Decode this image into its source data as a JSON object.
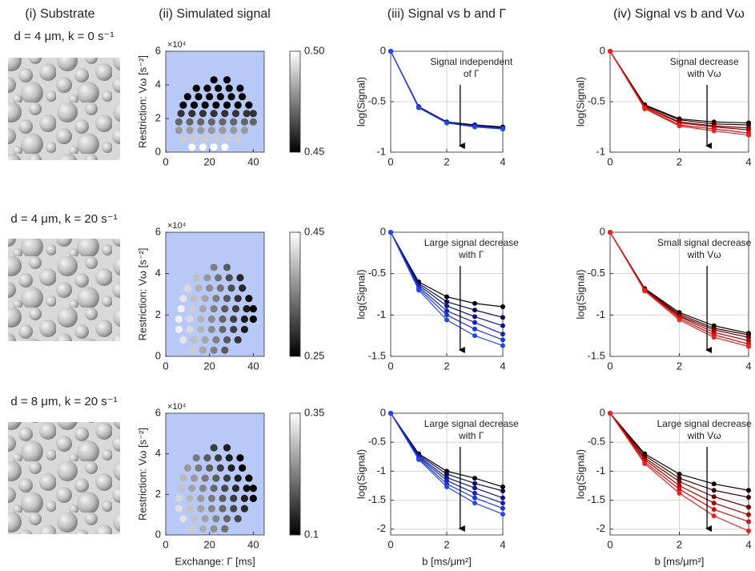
{
  "column_titles": [
    "(i) Substrate",
    "(ii) Simulated signal",
    "(iii) Signal vs b and Γ",
    "(iv) Signal vs b and Vω"
  ],
  "row_labels": [
    "d = 4 μm, k = 0 s⁻¹",
    "d = 4 μm, k = 20 s⁻¹",
    "d = 8 μm, k = 20 s⁻¹"
  ],
  "chart_data": [
    {
      "type": "scatter",
      "ylabel": "Restriction: Vω [s⁻²]",
      "y_multiplier": "×10⁴",
      "background": "#b8c9f8",
      "colormap": "gray",
      "xlim": [
        0,
        45
      ],
      "xticks": [
        0,
        20,
        40
      ],
      "ylim": [
        0,
        6
      ],
      "yticks": [
        0,
        2,
        4,
        6
      ],
      "clim": [
        0.45,
        0.5
      ],
      "cticks": [
        0.45,
        {
          "value": 0.5,
          "label": "0.50"
        }
      ],
      "x": [
        12,
        17,
        22,
        27,
        8,
        13,
        18,
        23,
        28,
        33,
        6,
        11,
        16,
        21,
        26,
        31,
        36,
        6,
        11,
        16,
        21,
        26,
        31,
        36,
        40,
        7,
        12,
        17,
        22,
        27,
        32,
        37,
        40,
        8,
        13,
        18,
        23,
        28,
        33,
        38,
        10,
        15,
        20,
        25,
        30,
        35,
        14,
        19,
        24,
        29,
        34,
        22,
        28
      ],
      "y": [
        0.3,
        0.3,
        0.3,
        0.3,
        0.8,
        0.8,
        0.8,
        0.8,
        0.8,
        0.8,
        1.3,
        1.3,
        1.3,
        1.3,
        1.3,
        1.3,
        1.3,
        1.8,
        1.8,
        1.8,
        1.8,
        1.8,
        1.8,
        1.8,
        1.8,
        2.3,
        2.3,
        2.3,
        2.3,
        2.3,
        2.3,
        2.3,
        2.3,
        2.8,
        2.8,
        2.8,
        2.8,
        2.8,
        2.8,
        2.8,
        3.3,
        3.3,
        3.3,
        3.3,
        3.3,
        3.3,
        3.8,
        3.8,
        3.8,
        3.8,
        3.8,
        4.3,
        4.3
      ],
      "values": [
        0.5,
        0.5,
        0.5,
        0.5,
        0.49,
        0.49,
        0.49,
        0.49,
        0.49,
        0.49,
        0.48,
        0.48,
        0.48,
        0.48,
        0.48,
        0.48,
        0.48,
        0.47,
        0.47,
        0.47,
        0.47,
        0.47,
        0.47,
        0.47,
        0.47,
        0.46,
        0.46,
        0.46,
        0.46,
        0.46,
        0.46,
        0.46,
        0.46,
        0.45,
        0.45,
        0.45,
        0.45,
        0.45,
        0.45,
        0.45,
        0.45,
        0.45,
        0.45,
        0.45,
        0.45,
        0.45,
        0.45,
        0.45,
        0.45,
        0.45,
        0.45,
        0.45,
        0.45
      ]
    },
    {
      "type": "line",
      "ylabel": "log(Signal)",
      "annotation": [
        "Signal independent",
        "of Γ"
      ],
      "grid": true,
      "x": [
        0,
        1,
        2,
        3,
        4
      ],
      "xlim": [
        0,
        4
      ],
      "xticks": [
        0,
        2,
        4
      ],
      "ylim": [
        -1,
        0
      ],
      "yticks": [
        -1,
        -0.5,
        0
      ],
      "series": [
        {
          "color": "#000000",
          "values": [
            0,
            -0.55,
            -0.7,
            -0.73,
            -0.75
          ]
        },
        {
          "color": "#0d0d55",
          "values": [
            0,
            -0.55,
            -0.7,
            -0.74,
            -0.76
          ]
        },
        {
          "color": "#141487",
          "values": [
            0,
            -0.56,
            -0.71,
            -0.74,
            -0.76
          ]
        },
        {
          "color": "#1a22b0",
          "values": [
            0,
            -0.56,
            -0.71,
            -0.74,
            -0.77
          ]
        },
        {
          "color": "#1f36d4",
          "values": [
            0,
            -0.56,
            -0.71,
            -0.75,
            -0.77
          ]
        },
        {
          "color": "#2448f0",
          "values": [
            0,
            -0.56,
            -0.71,
            -0.75,
            -0.77
          ]
        }
      ]
    },
    {
      "type": "line",
      "ylabel": "log(Signal)",
      "annotation": [
        "Signal decrease",
        "with Vω"
      ],
      "grid": true,
      "x": [
        0,
        1,
        2,
        3,
        4
      ],
      "xlim": [
        0,
        4
      ],
      "xticks": [
        0,
        2,
        4
      ],
      "ylim": [
        -1,
        0
      ],
      "yticks": [
        -1,
        -0.5,
        0
      ],
      "series": [
        {
          "color": "#000000",
          "values": [
            0,
            -0.53,
            -0.67,
            -0.7,
            -0.71
          ]
        },
        {
          "color": "#3a0000",
          "values": [
            0,
            -0.54,
            -0.68,
            -0.72,
            -0.73
          ]
        },
        {
          "color": "#6e0000",
          "values": [
            0,
            -0.55,
            -0.7,
            -0.74,
            -0.76
          ]
        },
        {
          "color": "#a00606",
          "values": [
            0,
            -0.55,
            -0.71,
            -0.75,
            -0.78
          ]
        },
        {
          "color": "#d01212",
          "values": [
            0,
            -0.56,
            -0.73,
            -0.77,
            -0.81
          ]
        },
        {
          "color": "#f42020",
          "values": [
            0,
            -0.57,
            -0.74,
            -0.79,
            -0.83
          ]
        }
      ]
    },
    {
      "type": "scatter",
      "ylabel": "Restriction: Vω [s⁻²]",
      "y_multiplier": "×10⁴",
      "background": "#b8c9f8",
      "colormap": "gray",
      "xlim": [
        0,
        45
      ],
      "xticks": [
        0,
        20,
        40
      ],
      "ylim": [
        0,
        6
      ],
      "yticks": [
        0,
        2,
        4,
        6
      ],
      "clim": [
        0.25,
        0.45
      ],
      "cticks": [
        0.25,
        0.45
      ],
      "x": [
        12,
        17,
        22,
        27,
        8,
        13,
        18,
        23,
        28,
        33,
        6,
        11,
        16,
        21,
        26,
        31,
        36,
        6,
        11,
        16,
        21,
        26,
        31,
        36,
        40,
        7,
        12,
        17,
        22,
        27,
        32,
        37,
        40,
        8,
        13,
        18,
        23,
        28,
        33,
        38,
        10,
        15,
        20,
        25,
        30,
        35,
        14,
        19,
        24,
        29,
        34,
        22,
        28
      ],
      "y": [
        0.3,
        0.3,
        0.3,
        0.3,
        0.8,
        0.8,
        0.8,
        0.8,
        0.8,
        0.8,
        1.3,
        1.3,
        1.3,
        1.3,
        1.3,
        1.3,
        1.3,
        1.8,
        1.8,
        1.8,
        1.8,
        1.8,
        1.8,
        1.8,
        1.8,
        2.3,
        2.3,
        2.3,
        2.3,
        2.3,
        2.3,
        2.3,
        2.3,
        2.8,
        2.8,
        2.8,
        2.8,
        2.8,
        2.8,
        2.8,
        3.3,
        3.3,
        3.3,
        3.3,
        3.3,
        3.3,
        3.8,
        3.8,
        3.8,
        3.8,
        3.8,
        4.3,
        4.3
      ],
      "values": [
        0.41,
        0.38,
        0.35,
        0.32,
        0.43,
        0.4,
        0.38,
        0.35,
        0.32,
        0.29,
        0.44,
        0.42,
        0.39,
        0.36,
        0.33,
        0.3,
        0.27,
        0.44,
        0.42,
        0.39,
        0.36,
        0.33,
        0.3,
        0.27,
        0.25,
        0.44,
        0.41,
        0.38,
        0.35,
        0.32,
        0.3,
        0.27,
        0.25,
        0.43,
        0.4,
        0.38,
        0.35,
        0.32,
        0.29,
        0.26,
        0.42,
        0.39,
        0.36,
        0.34,
        0.31,
        0.28,
        0.4,
        0.37,
        0.34,
        0.31,
        0.28,
        0.35,
        0.32
      ]
    },
    {
      "type": "line",
      "ylabel": "log(Signal)",
      "annotation": [
        "Large signal decrease",
        "with Γ"
      ],
      "grid": true,
      "x": [
        0,
        1,
        2,
        3,
        4
      ],
      "xlim": [
        0,
        4
      ],
      "xticks": [
        0,
        2,
        4
      ],
      "ylim": [
        -1.5,
        0
      ],
      "yticks": [
        -1.5,
        -1,
        -0.5,
        0
      ],
      "series": [
        {
          "color": "#000000",
          "values": [
            0,
            -0.6,
            -0.78,
            -0.86,
            -0.9
          ]
        },
        {
          "color": "#0d0d55",
          "values": [
            0,
            -0.62,
            -0.84,
            -0.94,
            -1.03
          ]
        },
        {
          "color": "#141487",
          "values": [
            0,
            -0.64,
            -0.89,
            -1.02,
            -1.13
          ]
        },
        {
          "color": "#1a22b0",
          "values": [
            0,
            -0.66,
            -0.95,
            -1.09,
            -1.23
          ]
        },
        {
          "color": "#1f36d4",
          "values": [
            0,
            -0.68,
            -1.0,
            -1.17,
            -1.3
          ]
        },
        {
          "color": "#2448f0",
          "values": [
            0,
            -0.7,
            -1.06,
            -1.25,
            -1.37
          ]
        }
      ]
    },
    {
      "type": "line",
      "ylabel": "log(Signal)",
      "annotation": [
        "Small signal decrease",
        "with Vω"
      ],
      "grid": true,
      "x": [
        0,
        1,
        2,
        3,
        4
      ],
      "xlim": [
        0,
        4
      ],
      "xticks": [
        0,
        2,
        4
      ],
      "ylim": [
        -1.5,
        0
      ],
      "yticks": [
        -1.5,
        -1,
        -0.5,
        0
      ],
      "series": [
        {
          "color": "#000000",
          "values": [
            0,
            -0.68,
            -0.97,
            -1.13,
            -1.22
          ]
        },
        {
          "color": "#3a0000",
          "values": [
            0,
            -0.69,
            -0.99,
            -1.16,
            -1.24
          ]
        },
        {
          "color": "#6e0000",
          "values": [
            0,
            -0.69,
            -1.01,
            -1.18,
            -1.27
          ]
        },
        {
          "color": "#a00606",
          "values": [
            0,
            -0.7,
            -1.02,
            -1.21,
            -1.31
          ]
        },
        {
          "color": "#d01212",
          "values": [
            0,
            -0.7,
            -1.04,
            -1.24,
            -1.35
          ]
        },
        {
          "color": "#f42020",
          "values": [
            0,
            -0.71,
            -1.06,
            -1.27,
            -1.38
          ]
        }
      ]
    },
    {
      "type": "scatter",
      "ylabel": "Restriction: Vω [s⁻²]",
      "xlabel": "Exchange: Γ [ms]",
      "y_multiplier": "×10⁴",
      "background": "#b8c9f8",
      "colormap": "gray",
      "xlim": [
        0,
        45
      ],
      "xticks": [
        0,
        20,
        40
      ],
      "ylim": [
        0,
        6
      ],
      "yticks": [
        0,
        2,
        4,
        6
      ],
      "clim": [
        0.1,
        0.35
      ],
      "cticks": [
        0.1,
        0.35
      ],
      "x": [
        12,
        17,
        22,
        27,
        8,
        13,
        18,
        23,
        28,
        33,
        6,
        11,
        16,
        21,
        26,
        31,
        36,
        6,
        11,
        16,
        21,
        26,
        31,
        36,
        40,
        7,
        12,
        17,
        22,
        27,
        32,
        37,
        40,
        8,
        13,
        18,
        23,
        28,
        33,
        38,
        10,
        15,
        20,
        25,
        30,
        35,
        14,
        19,
        24,
        29,
        34,
        22,
        28
      ],
      "y": [
        0.3,
        0.3,
        0.3,
        0.3,
        0.8,
        0.8,
        0.8,
        0.8,
        0.8,
        0.8,
        1.3,
        1.3,
        1.3,
        1.3,
        1.3,
        1.3,
        1.3,
        1.8,
        1.8,
        1.8,
        1.8,
        1.8,
        1.8,
        1.8,
        1.8,
        2.3,
        2.3,
        2.3,
        2.3,
        2.3,
        2.3,
        2.3,
        2.3,
        2.8,
        2.8,
        2.8,
        2.8,
        2.8,
        2.8,
        2.8,
        3.3,
        3.3,
        3.3,
        3.3,
        3.3,
        3.3,
        3.8,
        3.8,
        3.8,
        3.8,
        3.8,
        4.3,
        4.3
      ],
      "values": [
        0.3,
        0.27,
        0.24,
        0.21,
        0.32,
        0.29,
        0.26,
        0.23,
        0.2,
        0.17,
        0.32,
        0.29,
        0.26,
        0.23,
        0.2,
        0.17,
        0.14,
        0.31,
        0.28,
        0.25,
        0.22,
        0.19,
        0.16,
        0.13,
        0.1,
        0.29,
        0.26,
        0.23,
        0.2,
        0.17,
        0.14,
        0.11,
        0.1,
        0.28,
        0.25,
        0.22,
        0.19,
        0.16,
        0.13,
        0.1,
        0.25,
        0.22,
        0.19,
        0.16,
        0.13,
        0.1,
        0.22,
        0.19,
        0.16,
        0.13,
        0.1,
        0.16,
        0.13
      ]
    },
    {
      "type": "line",
      "ylabel": "log(Signal)",
      "xlabel": "b [ms/μm²]",
      "annotation": [
        "Large signal decrease",
        "with Γ"
      ],
      "grid": true,
      "x": [
        0,
        1,
        2,
        3,
        4
      ],
      "xlim": [
        0,
        4
      ],
      "xticks": [
        0,
        2,
        4
      ],
      "ylim": [
        -2.1,
        0
      ],
      "yticks": [
        -2,
        -1.5,
        -1,
        -0.5,
        0
      ],
      "series": [
        {
          "color": "#000000",
          "values": [
            0,
            -0.7,
            -1.0,
            -1.12,
            -1.27
          ]
        },
        {
          "color": "#0d0d55",
          "values": [
            0,
            -0.72,
            -1.05,
            -1.21,
            -1.34
          ]
        },
        {
          "color": "#141487",
          "values": [
            0,
            -0.74,
            -1.11,
            -1.29,
            -1.46
          ]
        },
        {
          "color": "#1a22b0",
          "values": [
            0,
            -0.76,
            -1.16,
            -1.38,
            -1.55
          ]
        },
        {
          "color": "#1f36d4",
          "values": [
            0,
            -0.78,
            -1.22,
            -1.46,
            -1.64
          ]
        },
        {
          "color": "#2448f0",
          "values": [
            0,
            -0.8,
            -1.27,
            -1.55,
            -1.74
          ]
        }
      ]
    },
    {
      "type": "line",
      "ylabel": "log(Signal)",
      "xlabel": "b [ms/μm²]",
      "annotation": [
        "Large signal decrease",
        "with Vω"
      ],
      "grid": true,
      "x": [
        0,
        1,
        2,
        3,
        4
      ],
      "xlim": [
        0,
        4
      ],
      "xticks": [
        0,
        2,
        4
      ],
      "ylim": [
        -2.1,
        0
      ],
      "yticks": [
        -2,
        -1.5,
        -1,
        -0.5,
        0
      ],
      "series": [
        {
          "color": "#000000",
          "values": [
            0,
            -0.7,
            -1.05,
            -1.22,
            -1.33
          ]
        },
        {
          "color": "#3a0000",
          "values": [
            0,
            -0.73,
            -1.12,
            -1.33,
            -1.45
          ]
        },
        {
          "color": "#6e0000",
          "values": [
            0,
            -0.77,
            -1.18,
            -1.44,
            -1.62
          ]
        },
        {
          "color": "#a00606",
          "values": [
            0,
            -0.8,
            -1.25,
            -1.55,
            -1.75
          ]
        },
        {
          "color": "#d01212",
          "values": [
            0,
            -0.84,
            -1.31,
            -1.66,
            -1.87
          ]
        },
        {
          "color": "#f42020",
          "values": [
            0,
            -0.87,
            -1.38,
            -1.77,
            -2.03
          ]
        }
      ]
    }
  ]
}
